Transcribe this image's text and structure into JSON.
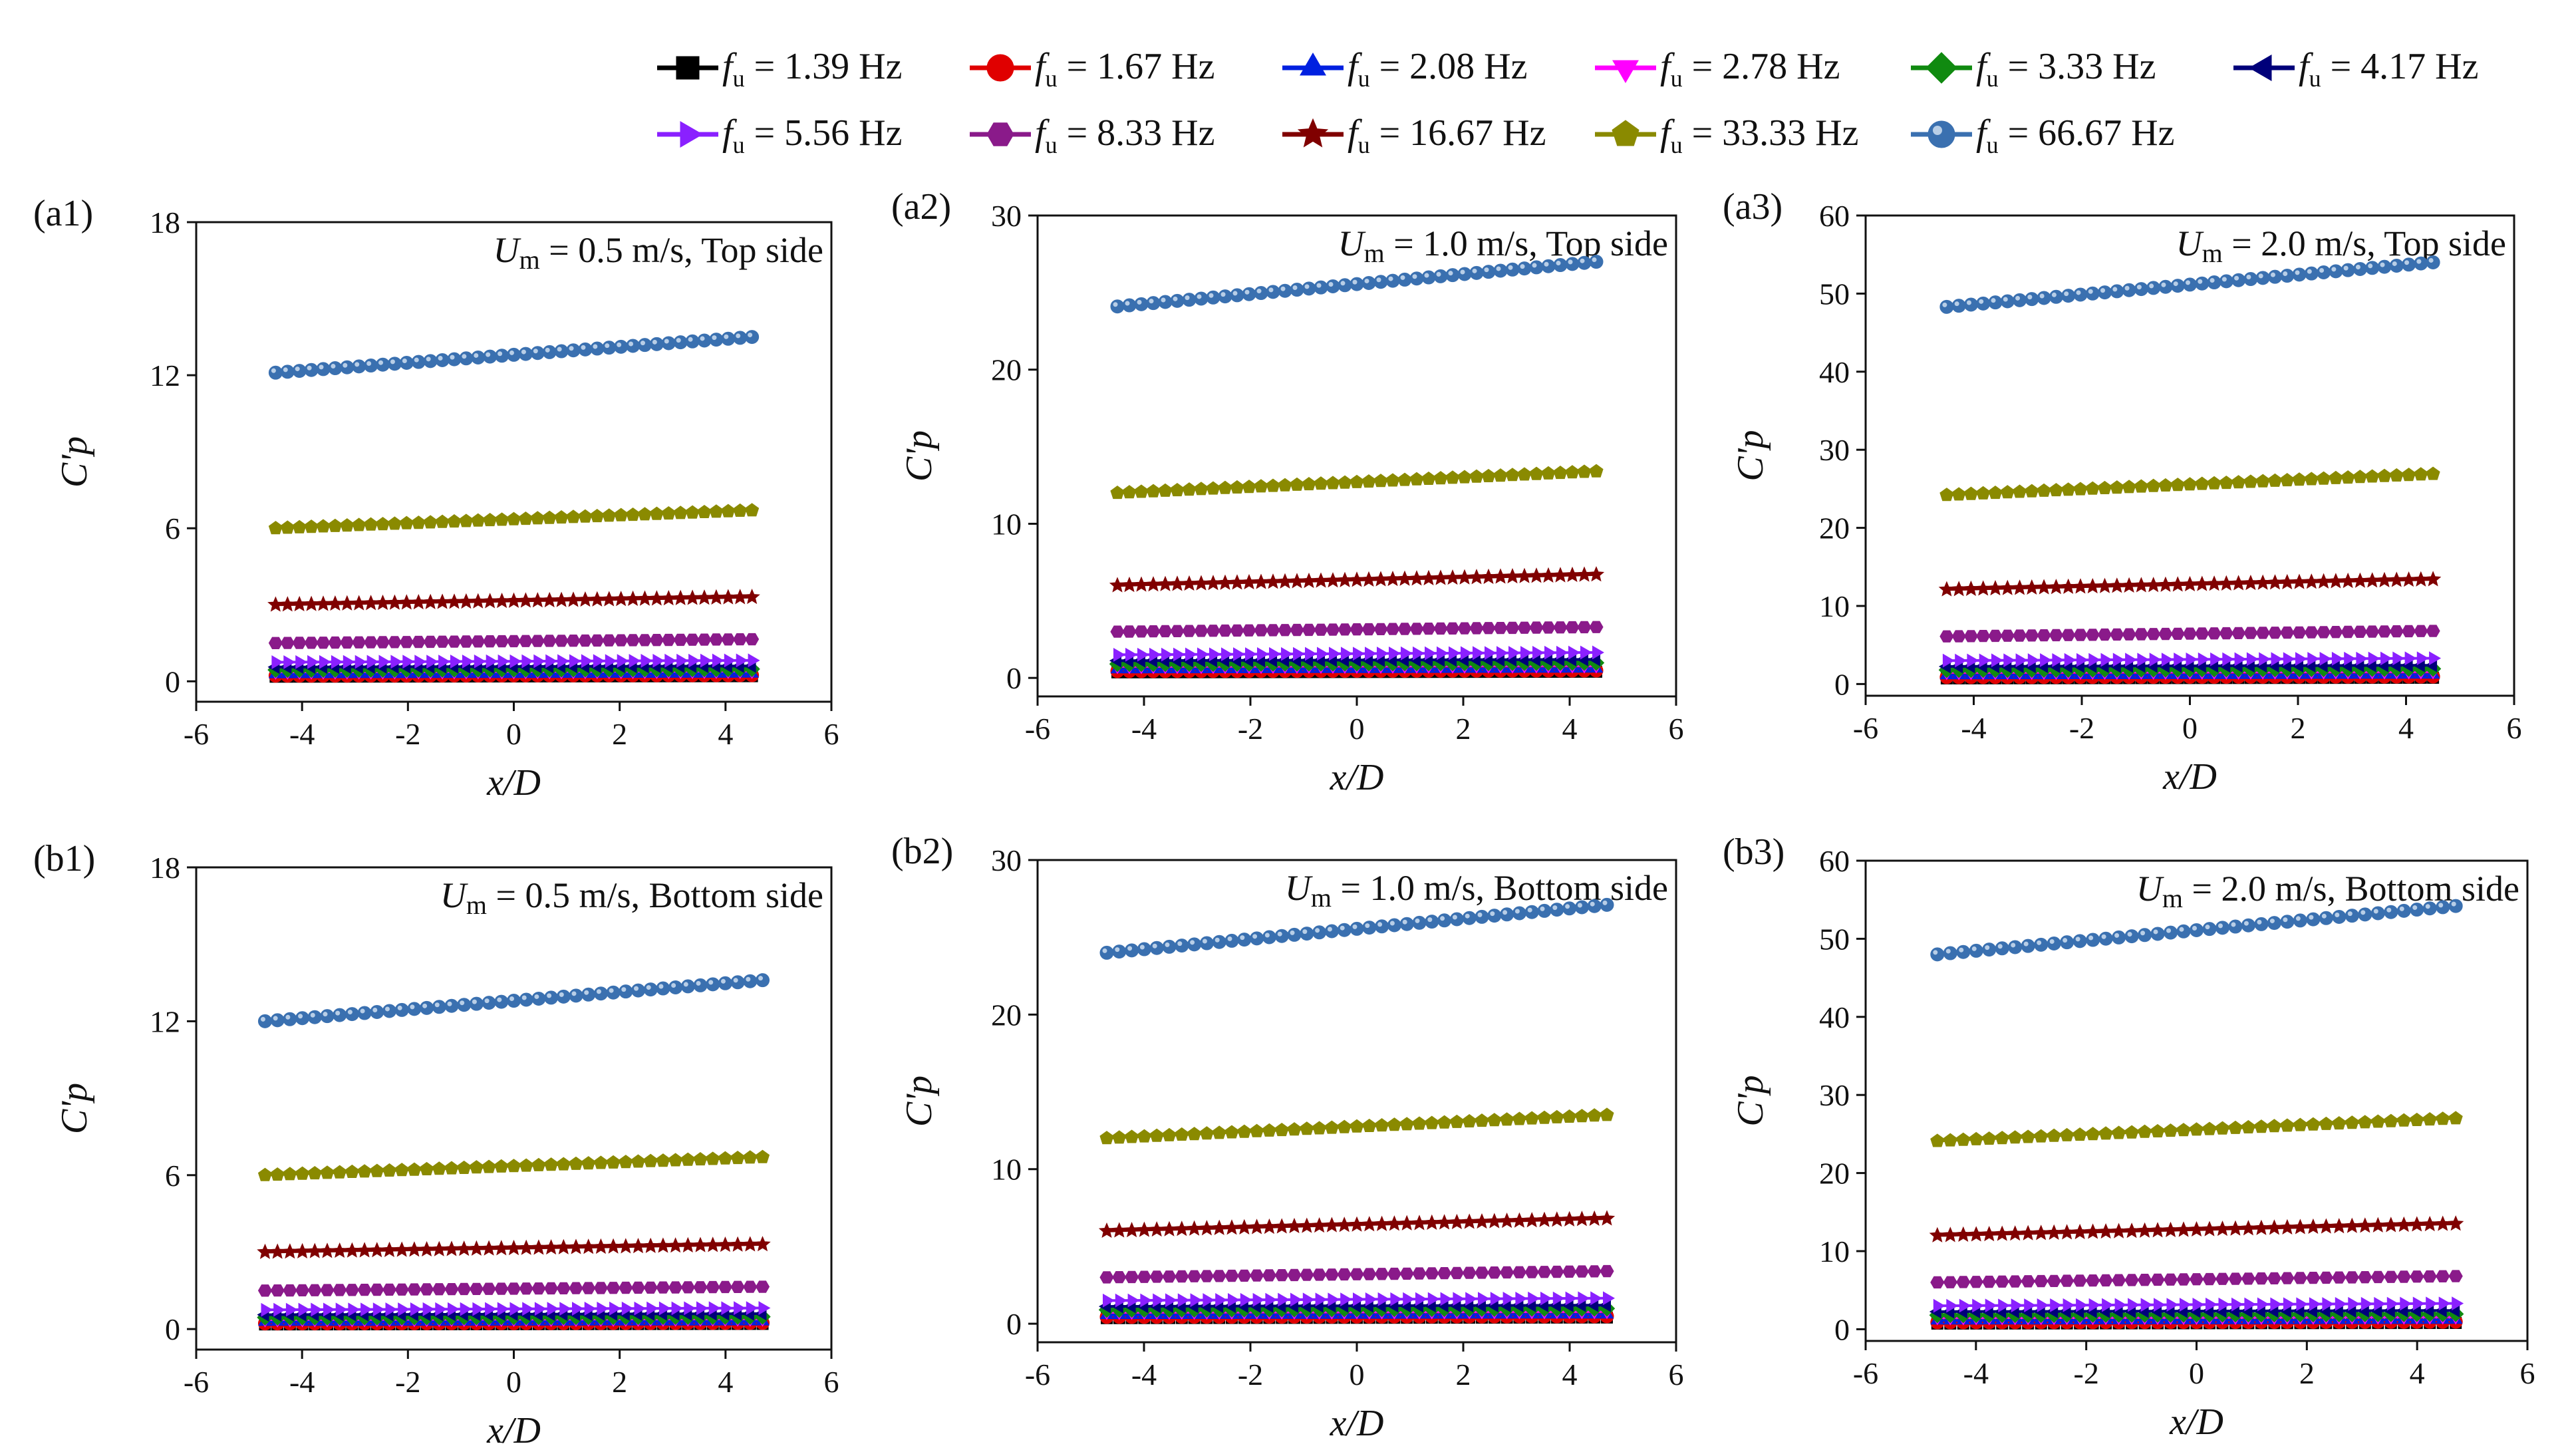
{
  "colors": {
    "1.39": "#000000",
    "1.67": "#e00000",
    "2.08": "#0020e0",
    "2.78": "#ff00ff",
    "3.33": "#108a10",
    "4.17": "#00007a",
    "5.56": "#8a20ff",
    "8.33": "#8a1a8a",
    "16.67": "#800000",
    "33.33": "#8a8a00",
    "66.67": "#3a70b0"
  },
  "legend": [
    {
      "sym": "f",
      "sub": "u",
      "text": " = 1.39 Hz",
      "marker": "square",
      "color": "#000000"
    },
    {
      "sym": "f",
      "sub": "u",
      "text": " = 1.67 Hz",
      "marker": "circle",
      "color": "#e00000"
    },
    {
      "sym": "f",
      "sub": "u",
      "text": " = 2.08 Hz",
      "marker": "triangle-up",
      "color": "#0020e0"
    },
    {
      "sym": "f",
      "sub": "u",
      "text": " = 2.78 Hz",
      "marker": "triangle-down",
      "color": "#ff00ff"
    },
    {
      "sym": "f",
      "sub": "u",
      "text": " = 3.33 Hz",
      "marker": "diamond",
      "color": "#108a10"
    },
    {
      "sym": "f",
      "sub": "u",
      "text": " = 4.17 Hz",
      "marker": "triangle-left",
      "color": "#00007a"
    },
    {
      "sym": "f",
      "sub": "u",
      "text": " = 5.56 Hz",
      "marker": "triangle-right",
      "color": "#8a20ff"
    },
    {
      "sym": "f",
      "sub": "u",
      "text": " = 8.33 Hz",
      "marker": "hexagon",
      "color": "#8a1a8a"
    },
    {
      "sym": "f",
      "sub": "u",
      "text": " = 16.67 Hz",
      "marker": "star",
      "color": "#800000"
    },
    {
      "sym": "f",
      "sub": "u",
      "text": " = 33.33 Hz",
      "marker": "pentagon",
      "color": "#8a8a00"
    },
    {
      "sym": "f",
      "sub": "u",
      "text": " = 66.67 Hz",
      "marker": "sphere",
      "color": "#3a70b0"
    }
  ],
  "chart_data": [
    {
      "type": "scatter",
      "panel_label": "(a1)",
      "title": "Um = 0.5 m/s, Top side",
      "annotation": {
        "sym": "U",
        "sub": "m",
        "rest": " = 0.5 m/s, Top side"
      },
      "xlabel": "x/D",
      "ylabel": "C'p",
      "xlim": [
        -6,
        6
      ],
      "ylim": [
        -0.8,
        18
      ],
      "xticks": [
        -6,
        -4,
        -2,
        0,
        2,
        4,
        6
      ],
      "yticks": [
        0,
        6,
        12,
        18
      ],
      "x_range": [
        -4.5,
        4.5
      ],
      "n_points": 41,
      "series": [
        {
          "f": "1.39",
          "start": 0.18,
          "end": 0.2
        },
        {
          "f": "1.67",
          "start": 0.22,
          "end": 0.24
        },
        {
          "f": "2.08",
          "start": 0.28,
          "end": 0.3
        },
        {
          "f": "2.78",
          "start": 0.37,
          "end": 0.4
        },
        {
          "f": "3.33",
          "start": 0.45,
          "end": 0.48
        },
        {
          "f": "4.17",
          "start": 0.56,
          "end": 0.6
        },
        {
          "f": "5.56",
          "start": 0.75,
          "end": 0.82
        },
        {
          "f": "8.33",
          "start": 1.5,
          "end": 1.65
        },
        {
          "f": "16.67",
          "start": 3.0,
          "end": 3.3
        },
        {
          "f": "33.33",
          "start": 6.0,
          "end": 6.7
        },
        {
          "f": "66.67",
          "start": 12.1,
          "end": 13.5
        }
      ]
    },
    {
      "type": "scatter",
      "panel_label": "(a2)",
      "title": "Um = 1.0 m/s, Top side",
      "annotation": {
        "sym": "U",
        "sub": "m",
        "rest": " = 1.0 m/s, Top side"
      },
      "xlabel": "x/D",
      "ylabel": "C'p",
      "xlim": [
        -6,
        6
      ],
      "ylim": [
        -1.2,
        30
      ],
      "xticks": [
        -6,
        -4,
        -2,
        0,
        2,
        4,
        6
      ],
      "yticks": [
        0,
        10,
        20,
        30
      ],
      "x_range": [
        -4.5,
        4.5
      ],
      "n_points": 41,
      "series": [
        {
          "f": "1.39",
          "start": 0.36,
          "end": 0.4
        },
        {
          "f": "1.67",
          "start": 0.44,
          "end": 0.48
        },
        {
          "f": "2.08",
          "start": 0.56,
          "end": 0.6
        },
        {
          "f": "2.78",
          "start": 0.75,
          "end": 0.8
        },
        {
          "f": "3.33",
          "start": 0.9,
          "end": 0.98
        },
        {
          "f": "4.17",
          "start": 1.12,
          "end": 1.2
        },
        {
          "f": "5.56",
          "start": 1.5,
          "end": 1.65
        },
        {
          "f": "8.33",
          "start": 3.0,
          "end": 3.3
        },
        {
          "f": "16.67",
          "start": 6.0,
          "end": 6.7
        },
        {
          "f": "33.33",
          "start": 12.0,
          "end": 13.4
        },
        {
          "f": "66.67",
          "start": 24.1,
          "end": 27.0
        }
      ]
    },
    {
      "type": "scatter",
      "panel_label": "(a3)",
      "title": "Um = 2.0 m/s, Top side",
      "annotation": {
        "sym": "U",
        "sub": "m",
        "rest": " = 2.0 m/s, Top side"
      },
      "xlabel": "x/D",
      "ylabel": "C'p",
      "xlim": [
        -6,
        6
      ],
      "ylim": [
        -1.5,
        60
      ],
      "xticks": [
        -6,
        -4,
        -2,
        0,
        2,
        4,
        6
      ],
      "yticks": [
        0,
        10,
        20,
        30,
        40,
        50,
        60
      ],
      "x_range": [
        -4.5,
        4.5
      ],
      "n_points": 41,
      "series": [
        {
          "f": "1.39",
          "start": 0.72,
          "end": 0.8
        },
        {
          "f": "1.67",
          "start": 0.88,
          "end": 0.96
        },
        {
          "f": "2.08",
          "start": 1.12,
          "end": 1.2
        },
        {
          "f": "2.78",
          "start": 1.5,
          "end": 1.6
        },
        {
          "f": "3.33",
          "start": 1.8,
          "end": 1.95
        },
        {
          "f": "4.17",
          "start": 2.25,
          "end": 2.4
        },
        {
          "f": "5.56",
          "start": 3.0,
          "end": 3.3
        },
        {
          "f": "8.33",
          "start": 6.1,
          "end": 6.8
        },
        {
          "f": "16.67",
          "start": 12.1,
          "end": 13.4
        },
        {
          "f": "33.33",
          "start": 24.2,
          "end": 26.9
        },
        {
          "f": "66.67",
          "start": 48.3,
          "end": 54.0
        }
      ]
    },
    {
      "type": "scatter",
      "panel_label": "(b1)",
      "title": "Um = 0.5 m/s, Bottom side",
      "annotation": {
        "sym": "U",
        "sub": "m",
        "rest": " = 0.5 m/s, Bottom side"
      },
      "xlabel": "x/D",
      "ylabel": "C'p",
      "xlim": [
        -6,
        6
      ],
      "ylim": [
        -0.8,
        18
      ],
      "xticks": [
        -6,
        -4,
        -2,
        0,
        2,
        4,
        6
      ],
      "yticks": [
        0,
        6,
        12,
        18
      ],
      "x_range": [
        -4.7,
        4.7
      ],
      "n_points": 41,
      "series": [
        {
          "f": "1.39",
          "start": 0.18,
          "end": 0.2
        },
        {
          "f": "1.67",
          "start": 0.22,
          "end": 0.24
        },
        {
          "f": "2.08",
          "start": 0.28,
          "end": 0.3
        },
        {
          "f": "2.78",
          "start": 0.37,
          "end": 0.4
        },
        {
          "f": "3.33",
          "start": 0.45,
          "end": 0.48
        },
        {
          "f": "4.17",
          "start": 0.56,
          "end": 0.6
        },
        {
          "f": "5.56",
          "start": 0.75,
          "end": 0.82
        },
        {
          "f": "8.33",
          "start": 1.5,
          "end": 1.65
        },
        {
          "f": "16.67",
          "start": 3.0,
          "end": 3.3
        },
        {
          "f": "33.33",
          "start": 6.0,
          "end": 6.7
        },
        {
          "f": "66.67",
          "start": 12.0,
          "end": 13.6
        }
      ]
    },
    {
      "type": "scatter",
      "panel_label": "(b2)",
      "title": "Um = 1.0 m/s, Bottom side",
      "annotation": {
        "sym": "U",
        "sub": "m",
        "rest": " = 1.0 m/s, Bottom side"
      },
      "xlabel": "x/D",
      "ylabel": "C'p",
      "xlim": [
        -6,
        6
      ],
      "ylim": [
        -1.2,
        30
      ],
      "xticks": [
        -6,
        -4,
        -2,
        0,
        2,
        4,
        6
      ],
      "yticks": [
        0,
        10,
        20,
        30
      ],
      "x_range": [
        -4.7,
        4.7
      ],
      "n_points": 41,
      "series": [
        {
          "f": "1.39",
          "start": 0.36,
          "end": 0.4
        },
        {
          "f": "1.67",
          "start": 0.44,
          "end": 0.48
        },
        {
          "f": "2.08",
          "start": 0.56,
          "end": 0.6
        },
        {
          "f": "2.78",
          "start": 0.75,
          "end": 0.8
        },
        {
          "f": "3.33",
          "start": 0.9,
          "end": 0.98
        },
        {
          "f": "4.17",
          "start": 1.12,
          "end": 1.2
        },
        {
          "f": "5.56",
          "start": 1.5,
          "end": 1.65
        },
        {
          "f": "8.33",
          "start": 3.0,
          "end": 3.4
        },
        {
          "f": "16.67",
          "start": 6.0,
          "end": 6.8
        },
        {
          "f": "33.33",
          "start": 12.0,
          "end": 13.5
        },
        {
          "f": "66.67",
          "start": 24.0,
          "end": 27.1
        }
      ]
    },
    {
      "type": "scatter",
      "panel_label": "(b3)",
      "title": "Um = 2.0 m/s, Bottom side",
      "annotation": {
        "sym": "U",
        "sub": "m",
        "rest": " = 2.0 m/s, Bottom side"
      },
      "xlabel": "x/D",
      "ylabel": "C'p",
      "xlim": [
        -6,
        6
      ],
      "ylim": [
        -1.5,
        60
      ],
      "xticks": [
        -6,
        -4,
        -2,
        0,
        2,
        4,
        6
      ],
      "yticks": [
        0,
        10,
        20,
        30,
        40,
        50,
        60
      ],
      "x_range": [
        -4.7,
        4.7
      ],
      "n_points": 41,
      "series": [
        {
          "f": "1.39",
          "start": 0.72,
          "end": 0.8
        },
        {
          "f": "1.67",
          "start": 0.88,
          "end": 0.96
        },
        {
          "f": "2.08",
          "start": 1.12,
          "end": 1.2
        },
        {
          "f": "2.78",
          "start": 1.5,
          "end": 1.6
        },
        {
          "f": "3.33",
          "start": 1.8,
          "end": 1.95
        },
        {
          "f": "4.17",
          "start": 2.25,
          "end": 2.4
        },
        {
          "f": "5.56",
          "start": 3.0,
          "end": 3.3
        },
        {
          "f": "8.33",
          "start": 6.0,
          "end": 6.8
        },
        {
          "f": "16.67",
          "start": 12.0,
          "end": 13.5
        },
        {
          "f": "33.33",
          "start": 24.1,
          "end": 27.0
        },
        {
          "f": "66.67",
          "start": 48.0,
          "end": 54.2
        }
      ]
    }
  ]
}
